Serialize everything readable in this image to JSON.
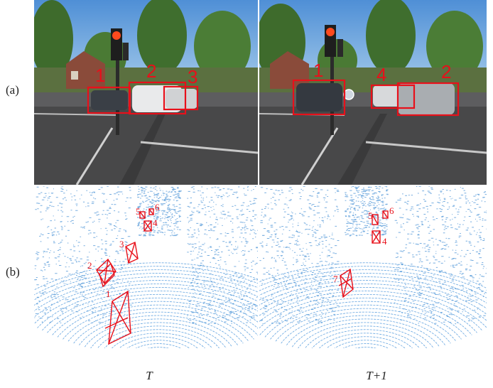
{
  "figure": {
    "row_labels": [
      "(a)",
      "(b)"
    ],
    "captions": [
      "T",
      "T+1"
    ],
    "camera_T": {
      "labels": [
        "1",
        "2",
        "3"
      ]
    },
    "camera_T1": {
      "labels": [
        "1",
        "4",
        "2"
      ]
    },
    "lidar_T": {
      "labels": [
        "5",
        "6",
        "4",
        "3",
        "2",
        "1"
      ]
    },
    "lidar_T1": {
      "labels": [
        "5",
        "6",
        "4",
        "7"
      ]
    }
  }
}
